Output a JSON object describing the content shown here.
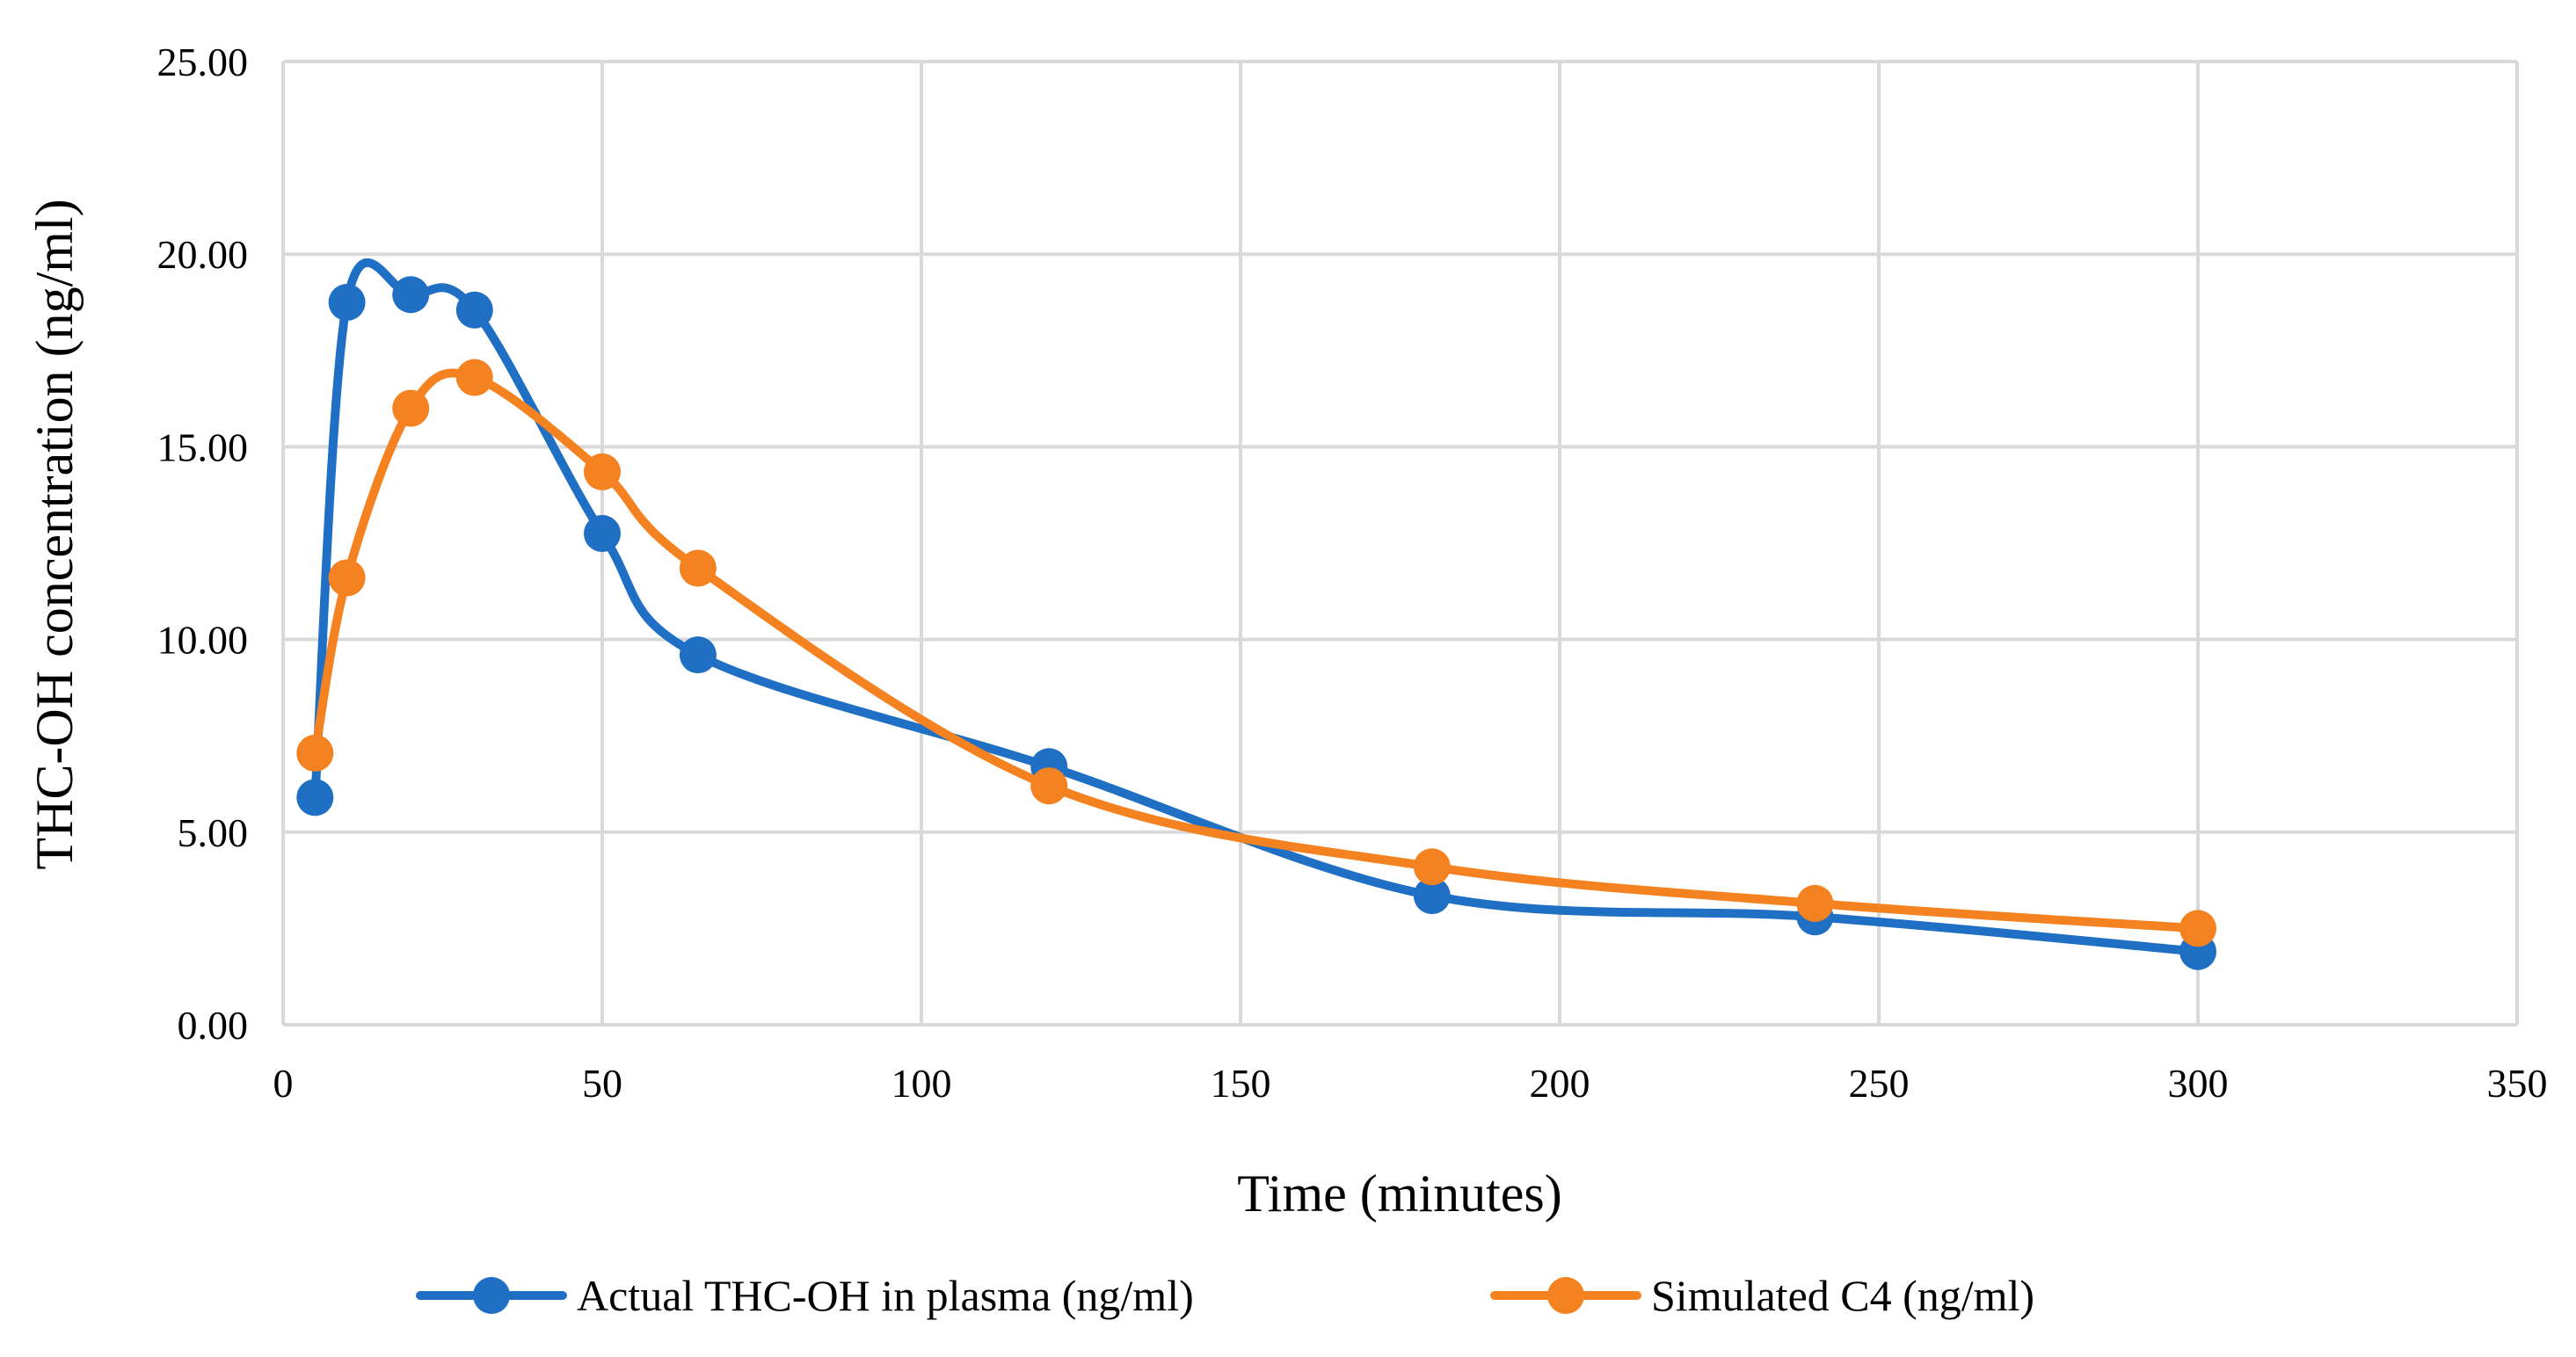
{
  "chart_data": {
    "type": "line",
    "title": "",
    "xlabel": "Time (minutes)",
    "ylabel": "THC-OH concentration (ng/ml)",
    "xlim": [
      0,
      350
    ],
    "ylim": [
      0,
      25
    ],
    "x_ticks": [
      0,
      50,
      100,
      150,
      200,
      250,
      300,
      350
    ],
    "x_tick_labels": [
      "0",
      "50",
      "100",
      "150",
      "200",
      "250",
      "300",
      "350"
    ],
    "y_ticks": [
      0,
      5,
      10,
      15,
      20,
      25
    ],
    "y_tick_labels": [
      "0.00",
      "5.00",
      "10.00",
      "15.00",
      "20.00",
      "25.00"
    ],
    "grid": true,
    "smooth": true,
    "legend_position": "bottom",
    "series": [
      {
        "name": "Actual THC-OH in plasma (ng/ml)",
        "color": "#1f6fc4",
        "x": [
          5,
          10,
          20,
          30,
          50,
          65,
          120,
          180,
          240,
          300
        ],
        "y": [
          5.9,
          18.75,
          18.95,
          18.55,
          12.75,
          9.6,
          6.7,
          3.35,
          2.8,
          1.9
        ]
      },
      {
        "name": "Simulated C4 (ng/ml)",
        "color": "#f58220",
        "x": [
          5,
          10,
          20,
          30,
          50,
          65,
          120,
          180,
          240,
          300
        ],
        "y": [
          7.05,
          11.6,
          16.0,
          16.8,
          14.35,
          11.85,
          6.2,
          4.1,
          3.15,
          2.5
        ]
      }
    ]
  }
}
